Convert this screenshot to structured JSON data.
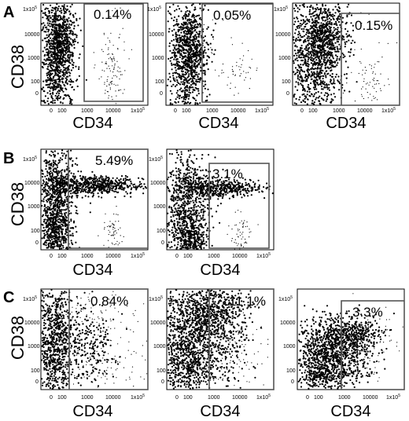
{
  "figure": {
    "rows": [
      {
        "letter": "A",
        "plots": [
          {
            "gate_label": "0.14%",
            "xlabel": "CD34",
            "ylabel": "CD38"
          },
          {
            "gate_label": "0.05%",
            "xlabel": "CD34",
            "ylabel": ""
          },
          {
            "gate_label": "0.15%",
            "xlabel": "CD34",
            "ylabel": ""
          }
        ]
      },
      {
        "letter": "B",
        "plots": [
          {
            "gate_label": "5.49%",
            "xlabel": "CD34",
            "ylabel": "CD38"
          },
          {
            "gate_label": "3.1%",
            "xlabel": "CD34",
            "ylabel": ""
          }
        ]
      },
      {
        "letter": "C",
        "plots": [
          {
            "gate_label": "0.84%",
            "xlabel": "CD34",
            "ylabel": "CD38"
          },
          {
            "gate_label": "11.1%",
            "xlabel": "CD34",
            "ylabel": ""
          },
          {
            "gate_label": "3.3%",
            "xlabel": "CD34",
            "ylabel": ""
          }
        ]
      }
    ]
  },
  "chart_data": [
    {
      "type": "scatter",
      "panel": "A",
      "title": "",
      "xlabel": "CD34",
      "ylabel": "CD38",
      "x_ticks": [
        "0",
        "100",
        "1000",
        "10000",
        "1x10^5"
      ],
      "y_ticks": [
        "0",
        "100",
        "1000",
        "10000",
        "1x10^5"
      ],
      "gate_percent": 0.14,
      "gate_label": "0.14%"
    },
    {
      "type": "scatter",
      "panel": "A",
      "title": "",
      "xlabel": "CD34",
      "ylabel": "CD38",
      "x_ticks": [
        "0",
        "100",
        "1000",
        "10000",
        "1x10^5"
      ],
      "y_ticks": [
        "0",
        "100",
        "1000",
        "10000",
        "1x10^5"
      ],
      "gate_percent": 0.05,
      "gate_label": "0.05%"
    },
    {
      "type": "scatter",
      "panel": "A",
      "title": "",
      "xlabel": "CD34",
      "ylabel": "CD38",
      "x_ticks": [
        "0",
        "100",
        "1000",
        "10000",
        "1x10^5"
      ],
      "y_ticks": [
        "0",
        "100",
        "1000",
        "10000",
        "1x10^5"
      ],
      "gate_percent": 0.15,
      "gate_label": "0.15%"
    },
    {
      "type": "scatter",
      "panel": "B",
      "title": "",
      "xlabel": "CD34",
      "ylabel": "CD38",
      "x_ticks": [
        "0",
        "100",
        "1000",
        "10000",
        "1x10^5"
      ],
      "y_ticks": [
        "0",
        "100",
        "1000",
        "10000",
        "1x10^5"
      ],
      "gate_percent": 5.49,
      "gate_label": "5.49%"
    },
    {
      "type": "scatter",
      "panel": "B",
      "title": "",
      "xlabel": "CD34",
      "ylabel": "CD38",
      "x_ticks": [
        "0",
        "100",
        "1000",
        "10000",
        "1x10^5"
      ],
      "y_ticks": [
        "0",
        "100",
        "1000",
        "10000",
        "1x10^5"
      ],
      "gate_percent": 3.1,
      "gate_label": "3.1%"
    },
    {
      "type": "scatter",
      "panel": "C",
      "title": "",
      "xlabel": "CD34",
      "ylabel": "CD38",
      "x_ticks": [
        "0",
        "100",
        "1000",
        "10000",
        "1x10^5"
      ],
      "y_ticks": [
        "0",
        "100",
        "1000",
        "10000",
        "1x10^5"
      ],
      "gate_percent": 0.84,
      "gate_label": "0.84%"
    },
    {
      "type": "scatter",
      "panel": "C",
      "title": "",
      "xlabel": "CD34",
      "ylabel": "CD38",
      "x_ticks": [
        "0",
        "100",
        "1000",
        "10000",
        "1x10^5"
      ],
      "y_ticks": [
        "0",
        "100",
        "1000",
        "10000",
        "1x10^5"
      ],
      "gate_percent": 11.1,
      "gate_label": "11.1%"
    },
    {
      "type": "scatter",
      "panel": "C",
      "title": "",
      "xlabel": "CD34",
      "ylabel": "CD38",
      "x_ticks": [
        "0",
        "100",
        "1000",
        "10000",
        "1x10^5"
      ],
      "y_ticks": [
        "0",
        "100",
        "1000",
        "10000",
        "1x10^5"
      ],
      "gate_percent": 3.3,
      "gate_label": "3.3%"
    }
  ],
  "colors": {
    "dots": "#000000",
    "frame": "#000000",
    "gate": "#555555",
    "background": "#ffffff"
  }
}
